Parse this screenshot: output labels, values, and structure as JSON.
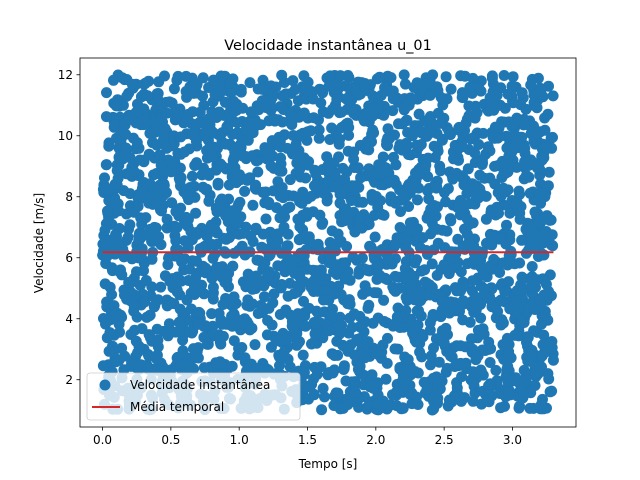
{
  "chart_data": {
    "type": "scatter",
    "title": "Velocidade instantânea u_01",
    "xlabel": "Tempo [s]",
    "ylabel": "Velocidade [m/s]",
    "xlim": [
      -0.165,
      3.465
    ],
    "ylim": [
      0.45,
      12.55
    ],
    "xticks": [
      0.0,
      0.5,
      1.0,
      1.5,
      2.0,
      2.5,
      3.0
    ],
    "xtick_labels": [
      "0.0",
      "0.5",
      "1.0",
      "1.5",
      "2.0",
      "2.5",
      "3.0"
    ],
    "yticks": [
      2,
      4,
      6,
      8,
      10,
      12
    ],
    "ytick_labels": [
      "2",
      "4",
      "6",
      "8",
      "10",
      "12"
    ],
    "grid": false,
    "legend_position": "lower-left",
    "series": [
      {
        "name": "Velocidade instantânea",
        "kind": "scatter",
        "color": "#1f77b4",
        "x_range": [
          0.0,
          3.3
        ],
        "y_range": [
          1.0,
          12.0
        ],
        "distribution": "uniform-dense"
      },
      {
        "name": "Média temporal",
        "kind": "line",
        "color": "#d62728",
        "x": [
          0.0,
          3.3
        ],
        "y": [
          6.18,
          6.18
        ]
      }
    ]
  }
}
